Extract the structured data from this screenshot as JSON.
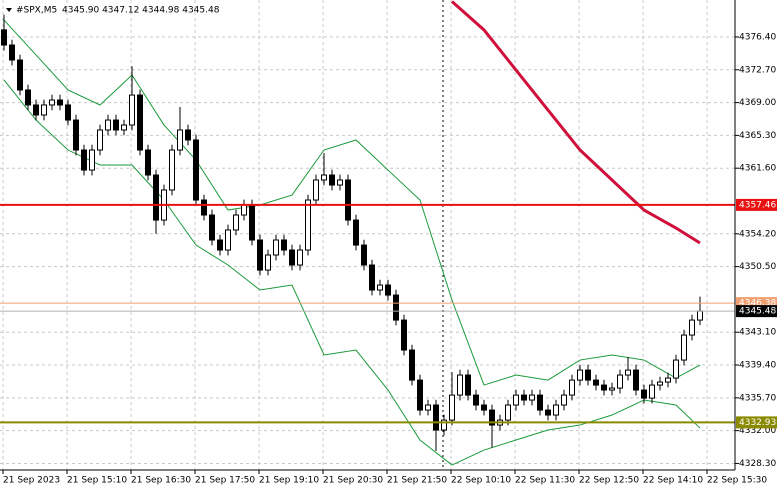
{
  "chart_data": {
    "type": "candlestick",
    "symbol": "#SPX,M5",
    "ohlc_text": "4345.90 4347.12 4344.98 4345.48",
    "ylim": [
      4327.56,
      4380.57
    ],
    "yticks": [
      {
        "value": 4376.4,
        "label": "4376.40"
      },
      {
        "value": 4372.7,
        "label": "4372.70"
      },
      {
        "value": 4369.0,
        "label": "4369.00"
      },
      {
        "value": 4365.3,
        "label": "4365.30"
      },
      {
        "value": 4361.6,
        "label": "4361.60"
      },
      {
        "value": 4354.2,
        "label": "4354.20"
      },
      {
        "value": 4350.5,
        "label": "4350.50"
      },
      {
        "value": 4343.1,
        "label": "4343.10"
      },
      {
        "value": 4339.4,
        "label": "4339.40"
      },
      {
        "value": 4335.7,
        "label": "4335.70"
      },
      {
        "value": 4332.0,
        "label": "4332.00"
      },
      {
        "value": 4328.3,
        "label": "4328.30"
      }
    ],
    "xticks": [
      {
        "value": 0,
        "label": "21 Sep 2023"
      },
      {
        "value": 8,
        "label": "21 Sep 15:10"
      },
      {
        "value": 16,
        "label": "21 Sep 16:30"
      },
      {
        "value": 24,
        "label": "21 Sep 17:50"
      },
      {
        "value": 32,
        "label": "21 Sep 19:10"
      },
      {
        "value": 40,
        "label": "21 Sep 20:30"
      },
      {
        "value": 48,
        "label": "21 Sep 21:50"
      },
      {
        "value": 56,
        "label": "22 Sep 10:10"
      },
      {
        "value": 64,
        "label": "22 Sep 11:30"
      },
      {
        "value": 72,
        "label": "22 Sep 12:50"
      },
      {
        "value": 80,
        "label": "22 Sep 14:10"
      },
      {
        "value": 88,
        "label": "22 Sep 15:30"
      }
    ],
    "grid": true,
    "up_color": "#ffffff",
    "down_color": "#000000",
    "open": [
      4377.2,
      4375.49,
      4373.8,
      4370.42,
      4368.73,
      4367.6,
      4368.73,
      4369.29,
      4368.73,
      4367.03,
      4363.65,
      4361.39,
      4363.65,
      4365.91,
      4367.03,
      4365.91,
      4366.47,
      4369.85,
      4363.65,
      4360.83,
      4355.75,
      4359.14,
      4363.65,
      4365.91,
      4364.78,
      4358.01,
      4356.32,
      4353.5,
      4352.37,
      4354.63,
      4356.32,
      4357.45,
      4353.5,
      4350.11,
      4351.81,
      4353.5,
      4352.37,
      4350.68,
      4352.37,
      4358.01,
      4360.27,
      4360.83,
      4359.7,
      4360.27,
      4355.75,
      4352.93,
      4350.68,
      4347.86,
      4348.42,
      4347.29,
      4344.47,
      4341.09,
      4337.7,
      4334.32,
      4334.89,
      4332.07,
      4333.19,
      4336.01,
      4338.27,
      4336.01,
      4334.89,
      4334.32,
      4332.63,
      4333.19,
      4334.89,
      4336.01,
      4335.45,
      4336.01,
      4334.32,
      4333.76,
      4334.89,
      4336.01,
      4337.7,
      4338.83,
      4337.7,
      4337.14,
      4336.58,
      4336.8,
      4338.27,
      4338.83,
      4336.58,
      4335.67,
      4337.14,
      4337.48,
      4337.93,
      4339.96,
      4342.78,
      4344.47
    ],
    "high": [
      4378.9,
      4376.09,
      4374.4,
      4371.02,
      4369.33,
      4369.33,
      4369.89,
      4369.89,
      4369.33,
      4367.63,
      4364.25,
      4364.25,
      4366.51,
      4367.63,
      4367.63,
      4367.07,
      4373.1,
      4370.45,
      4364.25,
      4361.43,
      4359.74,
      4364.25,
      4368.5,
      4366.51,
      4365.38,
      4358.61,
      4356.92,
      4354.1,
      4355.23,
      4356.92,
      4358.05,
      4358.05,
      4354.1,
      4352.41,
      4354.1,
      4354.1,
      4352.97,
      4352.97,
      4358.61,
      4360.87,
      4363.3,
      4361.43,
      4360.87,
      4360.87,
      4356.35,
      4353.53,
      4351.28,
      4349.02,
      4349.02,
      4347.89,
      4345.07,
      4341.69,
      4338.3,
      4335.49,
      4335.49,
      4333.79,
      4338.6,
      4338.87,
      4338.87,
      4336.61,
      4335.49,
      4334.92,
      4333.79,
      4335.49,
      4336.61,
      4336.61,
      4336.61,
      4336.61,
      4334.92,
      4335.49,
      4336.61,
      4338.3,
      4339.43,
      4339.43,
      4338.3,
      4337.74,
      4337.4,
      4338.87,
      4340.3,
      4339.43,
      4337.18,
      4337.74,
      4338.08,
      4338.53,
      4340.56,
      4343.38,
      4345.07,
      4347.12
    ],
    "low": [
      4374.89,
      4373.2,
      4369.82,
      4368.13,
      4367.0,
      4367.0,
      4368.13,
      4368.13,
      4366.43,
      4363.05,
      4360.79,
      4360.79,
      4363.05,
      4365.31,
      4365.31,
      4365.31,
      4365.87,
      4363.05,
      4360.23,
      4354.2,
      4355.15,
      4358.54,
      4363.05,
      4364.18,
      4357.41,
      4355.72,
      4352.9,
      4351.77,
      4351.77,
      4354.03,
      4355.72,
      4352.9,
      4349.51,
      4349.51,
      4351.21,
      4351.77,
      4350.08,
      4350.08,
      4351.77,
      4357.41,
      4359.67,
      4359.1,
      4359.1,
      4355.15,
      4352.33,
      4350.08,
      4347.26,
      4347.26,
      4346.69,
      4343.87,
      4340.49,
      4337.1,
      4333.72,
      4333.72,
      4329.7,
      4331.47,
      4332.59,
      4335.41,
      4335.41,
      4334.29,
      4333.72,
      4330.1,
      4332.03,
      4332.59,
      4334.29,
      4334.85,
      4334.85,
      4333.72,
      4333.16,
      4333.16,
      4334.29,
      4335.41,
      4337.1,
      4337.1,
      4336.54,
      4335.98,
      4335.98,
      4336.2,
      4337.67,
      4335.98,
      4335.07,
      4335.07,
      4336.54,
      4336.88,
      4337.33,
      4339.36,
      4342.18,
      4343.9
    ],
    "close": [
      4375.49,
      4373.8,
      4370.42,
      4368.73,
      4367.6,
      4368.73,
      4369.29,
      4368.73,
      4367.03,
      4363.65,
      4361.39,
      4363.65,
      4365.91,
      4367.03,
      4365.91,
      4366.47,
      4369.85,
      4363.65,
      4360.83,
      4355.75,
      4359.14,
      4363.65,
      4365.91,
      4364.78,
      4358.01,
      4356.32,
      4353.5,
      4352.37,
      4354.63,
      4356.32,
      4357.45,
      4353.5,
      4350.11,
      4351.81,
      4353.5,
      4352.37,
      4350.68,
      4352.37,
      4358.01,
      4360.27,
      4360.83,
      4359.7,
      4360.27,
      4355.75,
      4352.93,
      4350.68,
      4347.86,
      4348.42,
      4347.29,
      4344.47,
      4341.09,
      4337.7,
      4334.32,
      4334.89,
      4332.07,
      4333.19,
      4336.01,
      4338.27,
      4336.01,
      4334.89,
      4334.32,
      4332.63,
      4333.19,
      4334.89,
      4336.01,
      4335.45,
      4336.01,
      4334.32,
      4333.76,
      4334.89,
      4336.01,
      4337.7,
      4338.83,
      4337.7,
      4337.14,
      4336.58,
      4336.8,
      4338.27,
      4338.83,
      4336.58,
      4335.67,
      4337.14,
      4337.48,
      4337.93,
      4339.96,
      4342.78,
      4344.47,
      4345.48
    ],
    "bands": {
      "color": "#1a9a3a",
      "x": [
        0,
        4,
        8,
        12,
        16,
        20,
        24,
        28,
        32,
        36,
        40,
        44,
        48,
        52,
        56,
        60,
        64,
        68,
        72,
        76,
        80,
        84,
        87
      ],
      "upper": [
        4378.31,
        4374.37,
        4370.42,
        4368.73,
        4372.11,
        4366.47,
        4362.52,
        4356.88,
        4357.45,
        4358.57,
        4363.65,
        4364.78,
        4361.39,
        4358.01,
        4346.73,
        4337.14,
        4338.27,
        4337.7,
        4339.96,
        4340.53,
        4339.96,
        4337.93,
        4339.4
      ],
      "lower": [
        4371.55,
        4367.03,
        4363.65,
        4361.96,
        4361.96,
        4358.01,
        4352.93,
        4350.68,
        4347.86,
        4348.42,
        4340.53,
        4341.09,
        4336.58,
        4330.94,
        4328.12,
        4329.81,
        4330.94,
        4332.07,
        4332.63,
        4333.76,
        4335.45,
        4334.89,
        4332.29
      ]
    },
    "moving_average": {
      "color": "#d0103a",
      "x": [
        56,
        60,
        64,
        68,
        72,
        76,
        80,
        84,
        87
      ],
      "values": [
        4380.4,
        4377.19,
        4372.67,
        4368.16,
        4363.65,
        4360.27,
        4356.88,
        4354.85,
        4353.16
      ]
    },
    "levels": [
      {
        "value": 4357.46,
        "color": "#e81010"
      },
      {
        "value": 4346.38,
        "color": "#f0a070"
      },
      {
        "value": 4332.93,
        "color": "#8a8a00"
      }
    ],
    "current_price": {
      "value": 4345.48,
      "color": "#000000"
    }
  }
}
